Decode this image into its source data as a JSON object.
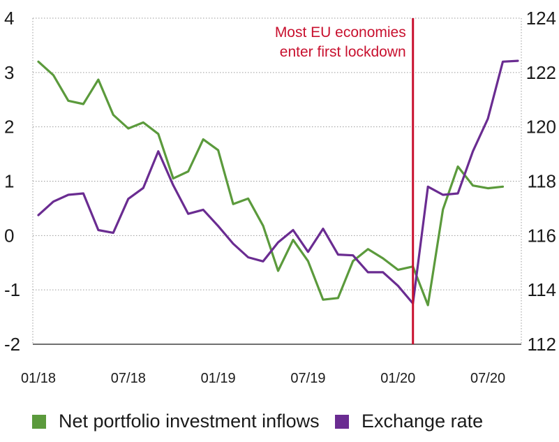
{
  "chart_data": {
    "type": "line",
    "x": [
      "01/18",
      "02/18",
      "03/18",
      "04/18",
      "05/18",
      "06/18",
      "07/18",
      "08/18",
      "09/18",
      "10/18",
      "11/18",
      "12/18",
      "01/19",
      "02/19",
      "03/19",
      "04/19",
      "05/19",
      "06/19",
      "07/19",
      "08/19",
      "09/19",
      "10/19",
      "11/19",
      "12/19",
      "01/20",
      "02/20",
      "03/20",
      "04/20",
      "05/20",
      "06/20",
      "07/20",
      "08/20",
      "09/20"
    ],
    "x_tick_labels": [
      "01/18",
      "07/18",
      "01/19",
      "07/19",
      "01/20",
      "07/20"
    ],
    "y_left": {
      "ylim": [
        -2,
        4
      ],
      "ticks": [
        "-2",
        "-1",
        "0",
        "1",
        "2",
        "3",
        "4"
      ]
    },
    "y_right": {
      "ylim": [
        112,
        124
      ],
      "ticks": [
        "112",
        "114",
        "116",
        "118",
        "120",
        "122",
        "124"
      ]
    },
    "grid": true,
    "series": [
      {
        "name": "Net portfolio investment inflows",
        "axis": "left",
        "color": "#5b9a3c",
        "values": [
          3.2,
          2.95,
          2.48,
          2.42,
          2.87,
          2.22,
          1.97,
          2.08,
          1.87,
          1.05,
          1.18,
          1.77,
          1.57,
          0.58,
          0.68,
          0.18,
          -0.65,
          -0.08,
          -0.47,
          -1.18,
          -1.15,
          -0.47,
          -0.25,
          -0.42,
          -0.63,
          -0.57,
          -1.28,
          0.48,
          1.27,
          0.92,
          0.87,
          0.9,
          null
        ]
      },
      {
        "name": "Exchange rate",
        "axis": "right",
        "color": "#6a2c91",
        "values": [
          116.75,
          117.25,
          117.5,
          117.55,
          116.2,
          116.1,
          117.35,
          117.75,
          119.1,
          117.85,
          116.8,
          116.95,
          116.35,
          115.7,
          115.2,
          115.05,
          115.75,
          116.2,
          115.4,
          116.25,
          115.3,
          115.27,
          114.65,
          114.65,
          114.15,
          113.5,
          117.8,
          117.5,
          117.55,
          119.1,
          120.3,
          122.4,
          122.43
        ]
      }
    ],
    "events": [
      {
        "x": "02/20",
        "color": "#c8102e",
        "label_lines": [
          "Most EU economies",
          "enter first lockdown"
        ]
      }
    ],
    "legend": {
      "position": "bottom"
    }
  }
}
